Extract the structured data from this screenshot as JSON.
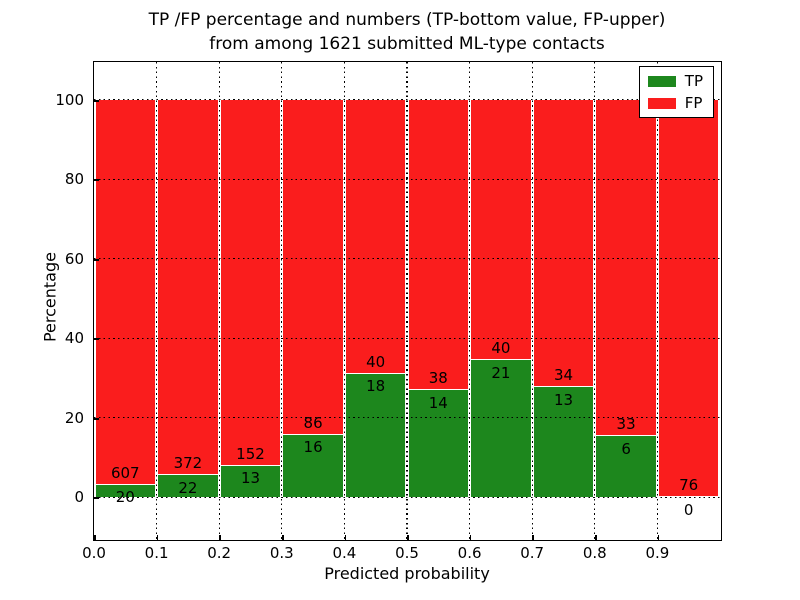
{
  "chart_data": {
    "type": "bar",
    "variant": "stacked-percentage",
    "title_line1": "TP /FP percentage and numbers (TP-bottom value, FP-upper)",
    "title_line2": "from among 1621 submitted ML-type contacts",
    "xlabel": "Predicted probability",
    "ylabel": "Percentage",
    "xlim": [
      0.0,
      1.0
    ],
    "ylim": [
      -10.5,
      109.5
    ],
    "x_ticks": [
      "0.0",
      "0.1",
      "0.2",
      "0.3",
      "0.4",
      "0.5",
      "0.6",
      "0.7",
      "0.8",
      "0.9"
    ],
    "y_ticks": [
      "0",
      "20",
      "40",
      "60",
      "80",
      "100"
    ],
    "grid": "dotted-black-over-bars",
    "total_contacts": 1621,
    "bin_width": 0.1,
    "bins": [
      {
        "range_start": 0.0,
        "range_end": 0.1,
        "tp": 20,
        "fp": 607,
        "tp_pct": 3.19
      },
      {
        "range_start": 0.1,
        "range_end": 0.2,
        "tp": 22,
        "fp": 372,
        "tp_pct": 5.58
      },
      {
        "range_start": 0.2,
        "range_end": 0.3,
        "tp": 13,
        "fp": 152,
        "tp_pct": 7.88
      },
      {
        "range_start": 0.3,
        "range_end": 0.4,
        "tp": 16,
        "fp": 86,
        "tp_pct": 15.69
      },
      {
        "range_start": 0.4,
        "range_end": 0.5,
        "tp": 18,
        "fp": 40,
        "tp_pct": 31.03
      },
      {
        "range_start": 0.5,
        "range_end": 0.6,
        "tp": 14,
        "fp": 38,
        "tp_pct": 26.92
      },
      {
        "range_start": 0.6,
        "range_end": 0.7,
        "tp": 21,
        "fp": 40,
        "tp_pct": 34.43
      },
      {
        "range_start": 0.7,
        "range_end": 0.8,
        "tp": 13,
        "fp": 34,
        "tp_pct": 27.66
      },
      {
        "range_start": 0.8,
        "range_end": 0.9,
        "tp": 6,
        "fp": 33,
        "tp_pct": 15.38
      },
      {
        "range_start": 0.9,
        "range_end": 1.0,
        "tp": 0,
        "fp": 76,
        "tp_pct": 0.0
      }
    ],
    "legend": {
      "position": "upper-right",
      "entries": [
        {
          "label": "TP",
          "color": "#1d871d"
        },
        {
          "label": "FP",
          "color": "#fa1d1d"
        }
      ]
    },
    "colors": {
      "tp": "#1d871d",
      "fp": "#fa1d1d",
      "grid": "#000000",
      "background": "#ffffff"
    }
  }
}
